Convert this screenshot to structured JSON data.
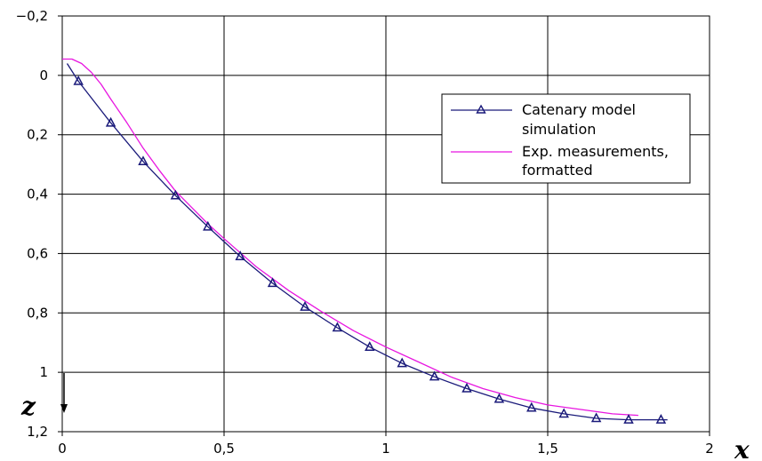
{
  "chart_data": {
    "type": "line",
    "xlabel": "x",
    "ylabel": "z",
    "xlim": [
      0,
      2
    ],
    "ylim": [
      -0.2,
      1.2
    ],
    "y_inverted": true,
    "grid": true,
    "x_ticks": [
      "0",
      "0,5",
      "1",
      "1,5",
      "2"
    ],
    "x_tick_values": [
      0,
      0.5,
      1,
      1.5,
      2
    ],
    "y_ticks": [
      "−0,2",
      "0",
      "0,2",
      "0,4",
      "0,6",
      "0,8",
      "1",
      "1,2"
    ],
    "y_tick_values": [
      -0.2,
      0,
      0.2,
      0.4,
      0.6,
      0.8,
      1,
      1.2
    ],
    "legend_position": "top-right",
    "series": [
      {
        "name_lines": [
          "Catenary model",
          "simulation"
        ],
        "color": "#1a1a7a",
        "marker": "triangle",
        "x": [
          0.015,
          0.05,
          0.15,
          0.25,
          0.35,
          0.45,
          0.55,
          0.65,
          0.75,
          0.85,
          0.95,
          1.05,
          1.15,
          1.25,
          1.35,
          1.45,
          1.55,
          1.65,
          1.75,
          1.85,
          1.87
        ],
        "y": [
          -0.04,
          0.02,
          0.16,
          0.29,
          0.405,
          0.51,
          0.61,
          0.7,
          0.78,
          0.85,
          0.915,
          0.97,
          1.015,
          1.055,
          1.09,
          1.12,
          1.14,
          1.155,
          1.16,
          1.16,
          1.16
        ],
        "marker_x": [
          0.05,
          0.15,
          0.25,
          0.35,
          0.45,
          0.55,
          0.65,
          0.75,
          0.85,
          0.95,
          1.05,
          1.15,
          1.25,
          1.35,
          1.45,
          1.55,
          1.65,
          1.75,
          1.85
        ],
        "marker_y": [
          0.02,
          0.16,
          0.29,
          0.405,
          0.51,
          0.61,
          0.7,
          0.78,
          0.85,
          0.915,
          0.97,
          1.015,
          1.055,
          1.09,
          1.12,
          1.14,
          1.155,
          1.16,
          1.16
        ]
      },
      {
        "name_lines": [
          "Exp. measurements,",
          "formatted"
        ],
        "color": "#e815e0",
        "marker": "none",
        "x": [
          0.0,
          0.03,
          0.06,
          0.09,
          0.12,
          0.15,
          0.2,
          0.25,
          0.3,
          0.35,
          0.4,
          0.45,
          0.5,
          0.6,
          0.7,
          0.8,
          0.9,
          1.0,
          1.1,
          1.2,
          1.3,
          1.4,
          1.5,
          1.6,
          1.7,
          1.78
        ],
        "y": [
          -0.055,
          -0.055,
          -0.04,
          -0.01,
          0.03,
          0.08,
          0.16,
          0.245,
          0.32,
          0.39,
          0.445,
          0.5,
          0.55,
          0.645,
          0.725,
          0.795,
          0.86,
          0.915,
          0.965,
          1.015,
          1.055,
          1.085,
          1.11,
          1.125,
          1.14,
          1.145
        ]
      }
    ]
  }
}
